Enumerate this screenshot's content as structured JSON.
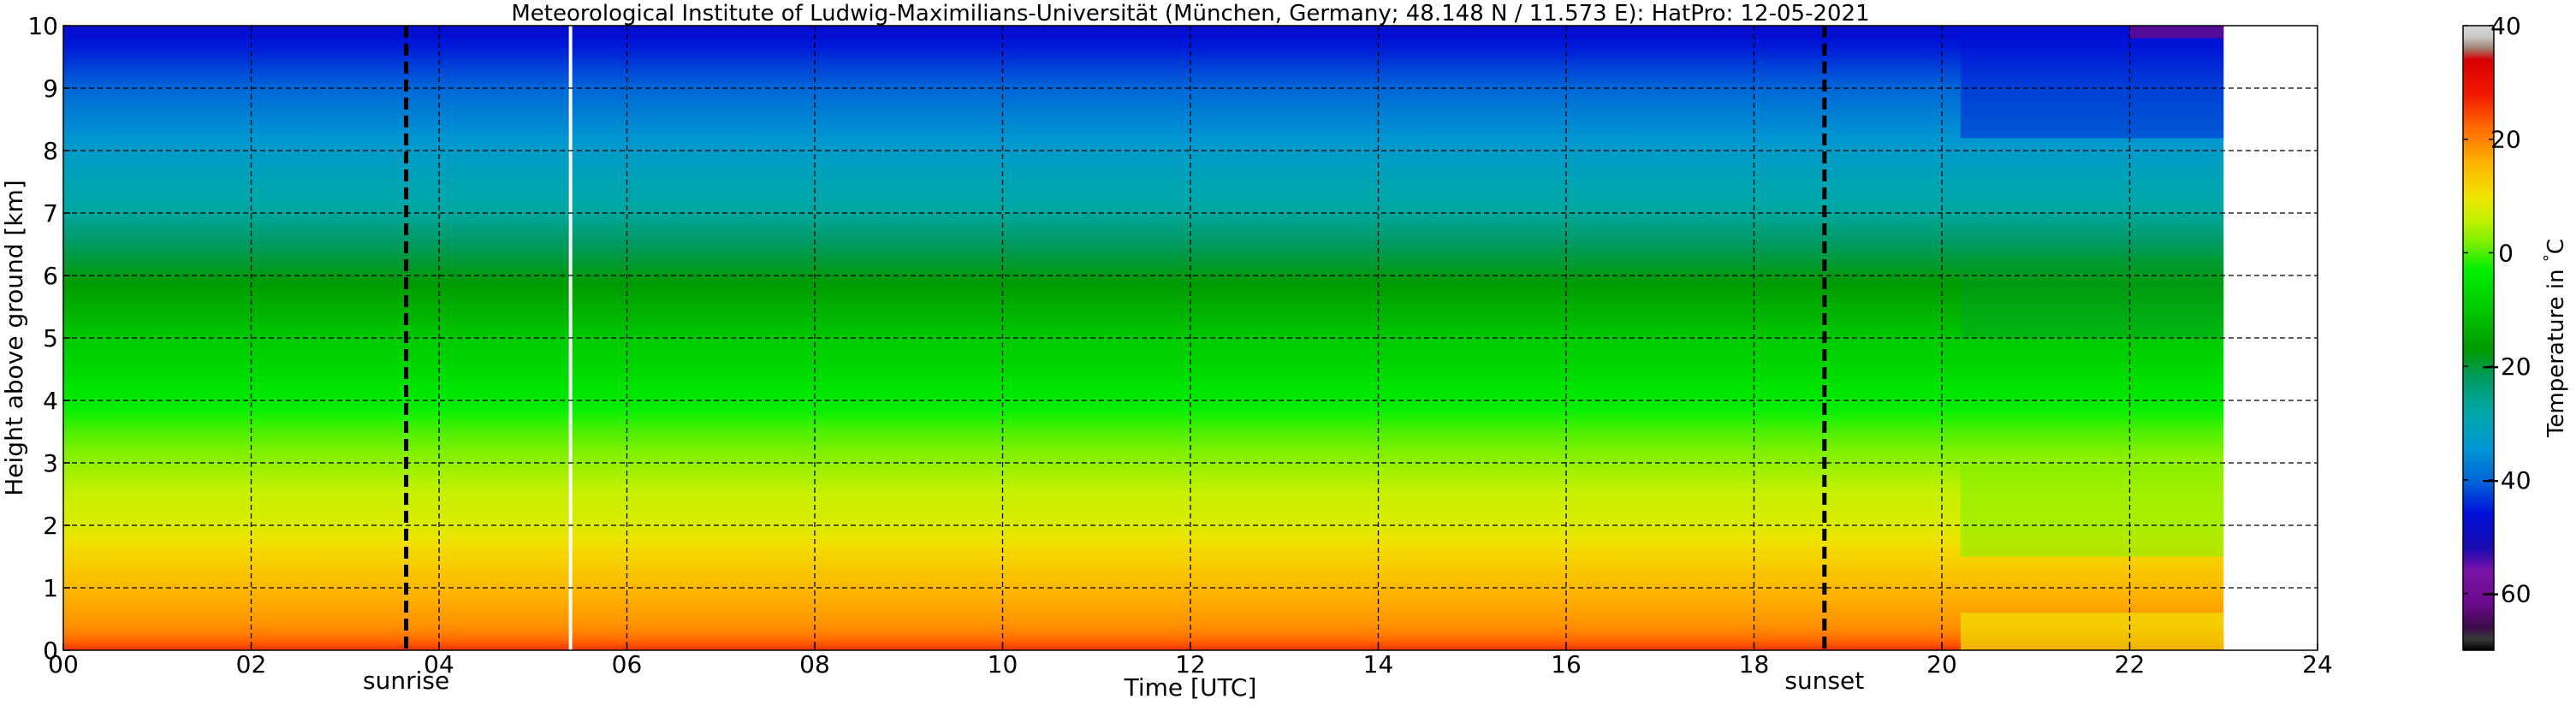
{
  "chart_data": {
    "type": "heatmap",
    "title": "Meteorological Institute of Ludwig-Maximilians-Universität (München, Germany; 48.148 N / 11.573 E):    HatPro: 12-05-2021",
    "xlabel": "Time [UTC]",
    "ylabel": "Height above ground [km]",
    "xlim": [
      0,
      24
    ],
    "ylim": [
      0,
      10
    ],
    "x_ticks": [
      0,
      2,
      4,
      6,
      8,
      10,
      12,
      14,
      16,
      18,
      20,
      22,
      24
    ],
    "x_tick_labels": [
      "00",
      "02",
      "04",
      "06",
      "08",
      "10",
      "12",
      "14",
      "16",
      "18",
      "20",
      "22",
      "24"
    ],
    "y_ticks": [
      0,
      1,
      2,
      3,
      4,
      5,
      6,
      7,
      8,
      9,
      10
    ],
    "y_tick_labels": [
      "0",
      "1",
      "2",
      "3",
      "4",
      "5",
      "6",
      "7",
      "8",
      "9",
      "10"
    ],
    "grid": "dashed",
    "data_end_hour": 23,
    "data_gap_hour": 5.4,
    "events": [
      {
        "name": "sunrise",
        "hour": 3.65
      },
      {
        "name": "sunset",
        "hour": 18.75
      }
    ],
    "temperature_profile": {
      "height_km": [
        0,
        0.25,
        0.5,
        1,
        1.5,
        2,
        2.5,
        3,
        3.5,
        4,
        5,
        6,
        6.5,
        7,
        8,
        9,
        10
      ],
      "temperature_C": [
        26,
        20,
        18,
        15,
        12,
        8,
        6,
        3,
        0,
        -4,
        -10,
        -18,
        -22,
        -27,
        -33,
        -40,
        -48
      ]
    },
    "colorbar": {
      "label": "Temperature in $^\\circ$C",
      "range": [
        -70,
        40
      ],
      "ticks": [
        40,
        20,
        0,
        -20,
        -40,
        -60
      ],
      "tick_labels": [
        "40",
        "20",
        "0",
        "−20",
        "−40",
        "−60"
      ],
      "stops": [
        {
          "value": -70,
          "color": "#000000"
        },
        {
          "value": -68,
          "color": "#3a3a3a"
        },
        {
          "value": -66,
          "color": "#3d0a4a"
        },
        {
          "value": -62,
          "color": "#6a0a8a"
        },
        {
          "value": -56,
          "color": "#7a14a8"
        },
        {
          "value": -52,
          "color": "#1a0ab0"
        },
        {
          "value": -46,
          "color": "#0010d8"
        },
        {
          "value": -40,
          "color": "#0068d8"
        },
        {
          "value": -34,
          "color": "#0098d0"
        },
        {
          "value": -28,
          "color": "#00a8a8"
        },
        {
          "value": -22,
          "color": "#009a60"
        },
        {
          "value": -17,
          "color": "#009a00"
        },
        {
          "value": -10,
          "color": "#00c800"
        },
        {
          "value": -3,
          "color": "#00f000"
        },
        {
          "value": 2,
          "color": "#80f000"
        },
        {
          "value": 6,
          "color": "#c8f000"
        },
        {
          "value": 10,
          "color": "#f0e400"
        },
        {
          "value": 16,
          "color": "#ffb000"
        },
        {
          "value": 22,
          "color": "#ff6a00"
        },
        {
          "value": 28,
          "color": "#f01800"
        },
        {
          "value": 34,
          "color": "#d80000"
        },
        {
          "value": 36,
          "color": "#a08070"
        },
        {
          "value": 38,
          "color": "#c8c8c8"
        },
        {
          "value": 40,
          "color": "#d8d8d8"
        }
      ]
    }
  }
}
